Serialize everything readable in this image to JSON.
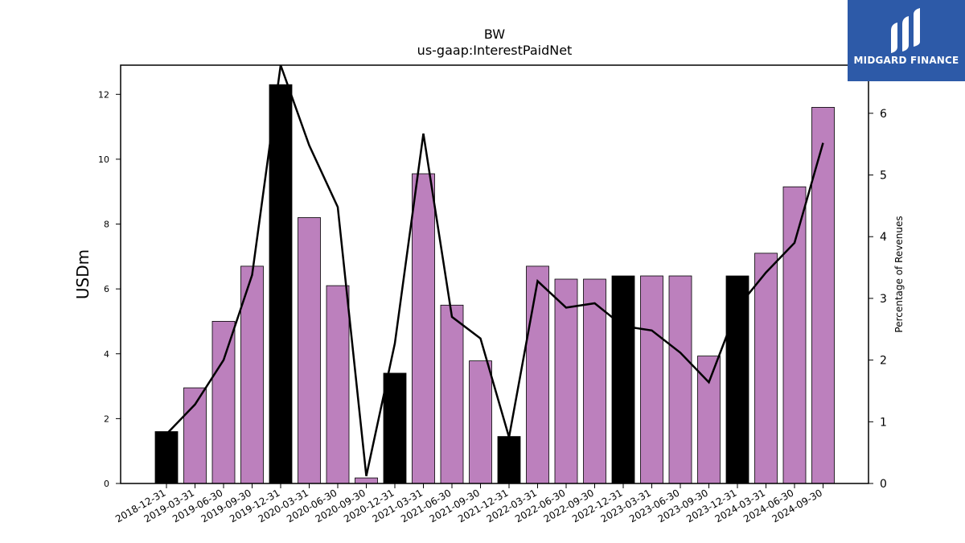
{
  "chart_data": {
    "type": "bar",
    "title": "BW",
    "subtitle": "us-gaap:InterestPaidNet",
    "ylabel": "USDm",
    "y2label": "Percentage of Revenues",
    "ylim": [
      0,
      12.9
    ],
    "y2lim": [
      0,
      6.78
    ],
    "yticks": [
      0,
      2,
      4,
      6,
      8,
      10,
      12
    ],
    "y2ticks": [
      0,
      1,
      2,
      3,
      4,
      5,
      6
    ],
    "categories": [
      "2018-12-31",
      "2019-03-31",
      "2019-06-30",
      "2019-09-30",
      "2019-12-31",
      "2020-03-31",
      "2020-06-30",
      "2020-09-30",
      "2020-12-31",
      "2021-03-31",
      "2021-06-30",
      "2021-09-30",
      "2021-12-31",
      "2022-03-31",
      "2022-06-30",
      "2022-09-30",
      "2022-12-31",
      "2023-03-31",
      "2023-06-30",
      "2023-09-30",
      "2023-12-31",
      "2024-03-31",
      "2024-06-30",
      "2024-09-30"
    ],
    "series": [
      {
        "values": [
          1.6,
          2.95,
          5.0,
          6.7,
          12.3,
          8.2,
          6.1,
          0.17,
          3.4,
          9.55,
          5.5,
          3.78,
          1.45,
          6.7,
          6.3,
          6.3,
          6.4,
          6.4,
          6.4,
          3.93,
          6.4,
          7.1,
          9.15,
          11.6
        ],
        "highlight": [
          true,
          false,
          false,
          false,
          true,
          false,
          false,
          false,
          true,
          false,
          false,
          false,
          true,
          false,
          false,
          false,
          true,
          false,
          false,
          false,
          true,
          false,
          false,
          false
        ],
        "color": "#bc80bd",
        "highlight_color": "#000000"
      },
      {
        "type": "line",
        "axis": "right",
        "values": [
          0.8,
          1.28,
          2.0,
          3.38,
          6.78,
          5.48,
          4.48,
          0.12,
          2.27,
          5.67,
          2.7,
          2.35,
          0.75,
          3.28,
          2.85,
          2.92,
          2.55,
          2.48,
          2.12,
          1.64,
          2.85,
          3.42,
          3.9,
          5.52
        ],
        "color": "#000000"
      }
    ]
  },
  "brand": {
    "name": "MIDGARD FINANCE",
    "color": "#2d5aa8"
  }
}
